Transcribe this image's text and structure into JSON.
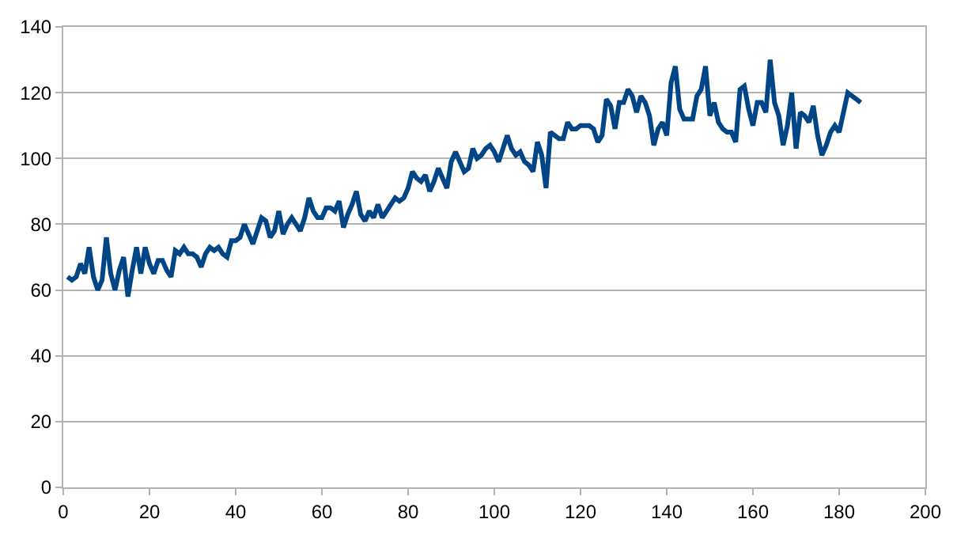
{
  "chart_data": {
    "type": "line",
    "x": [
      1,
      2,
      3,
      4,
      5,
      6,
      7,
      8,
      9,
      10,
      11,
      12,
      13,
      14,
      15,
      16,
      17,
      18,
      19,
      20,
      21,
      22,
      23,
      24,
      25,
      26,
      27,
      28,
      29,
      30,
      31,
      32,
      33,
      34,
      35,
      36,
      37,
      38,
      39,
      40,
      41,
      42,
      43,
      44,
      45,
      46,
      47,
      48,
      49,
      50,
      51,
      52,
      53,
      54,
      55,
      56,
      57,
      58,
      59,
      60,
      61,
      62,
      63,
      64,
      65,
      66,
      67,
      68,
      69,
      70,
      71,
      72,
      73,
      74,
      75,
      76,
      77,
      78,
      79,
      80,
      81,
      82,
      83,
      84,
      85,
      86,
      87,
      88,
      89,
      90,
      91,
      92,
      93,
      94,
      95,
      96,
      97,
      98,
      99,
      100,
      101,
      102,
      103,
      104,
      105,
      106,
      107,
      108,
      109,
      110,
      111,
      112,
      113,
      114,
      115,
      116,
      117,
      118,
      119,
      120,
      121,
      122,
      123,
      124,
      125,
      126,
      127,
      128,
      129,
      130,
      131,
      132,
      133,
      134,
      135,
      136,
      137,
      138,
      139,
      140,
      141,
      142,
      143,
      144,
      145,
      146,
      147,
      148,
      149,
      150,
      151,
      152,
      153,
      154,
      155,
      156,
      157,
      158,
      159,
      160,
      161,
      162,
      163,
      164,
      165,
      166,
      167,
      168,
      169,
      170,
      171,
      172,
      173,
      174,
      175,
      176,
      177,
      178,
      179,
      180,
      181,
      182,
      183,
      184,
      185
    ],
    "series": [
      {
        "color": "#004586",
        "values": [
          64,
          63,
          64,
          68,
          65,
          73,
          64,
          60,
          63,
          76,
          65,
          60,
          66,
          70,
          58,
          66,
          73,
          65,
          73,
          68,
          65,
          69,
          69,
          66,
          64,
          72,
          71,
          73,
          71,
          71,
          70,
          67,
          71,
          73,
          72,
          73,
          71,
          70,
          75,
          75,
          76,
          80,
          77,
          74,
          78,
          82,
          81,
          76,
          78,
          84,
          77,
          80,
          82,
          80,
          78,
          82,
          88,
          84,
          82,
          82,
          85,
          85,
          84,
          87,
          79,
          83,
          86,
          90,
          83,
          81,
          84,
          82,
          86,
          82,
          84,
          86,
          88,
          87,
          88,
          91,
          96,
          94,
          93,
          95,
          90,
          93,
          97,
          94,
          91,
          99,
          102,
          99,
          96,
          97,
          103,
          100,
          101,
          103,
          104,
          102,
          99,
          103,
          107,
          103,
          101,
          102,
          99,
          98,
          96,
          105,
          101,
          91,
          108,
          107,
          106,
          106,
          111,
          109,
          109,
          110,
          110,
          110,
          109,
          105,
          107,
          118,
          116,
          109,
          117,
          117,
          121,
          119,
          114,
          119,
          117,
          113,
          104,
          109,
          111,
          107,
          123,
          128,
          115,
          112,
          112,
          112,
          119,
          121,
          128,
          113,
          117,
          111,
          109,
          108,
          108,
          105,
          121,
          122,
          115,
          110,
          117,
          117,
          114,
          130,
          117,
          113,
          104,
          110,
          120,
          103,
          114,
          113,
          111,
          116,
          107,
          101,
          104,
          108,
          110,
          108,
          114,
          120,
          119,
          118,
          117
        ]
      }
    ],
    "xlim": [
      0,
      200
    ],
    "xticks": [
      0,
      20,
      40,
      60,
      80,
      100,
      120,
      140,
      160,
      180,
      200
    ],
    "ylim": [
      0,
      140
    ],
    "yticks": [
      0,
      20,
      40,
      60,
      80,
      100,
      120,
      140
    ],
    "grid": "y",
    "legend": false,
    "marker": "none",
    "line_style": "solid"
  }
}
